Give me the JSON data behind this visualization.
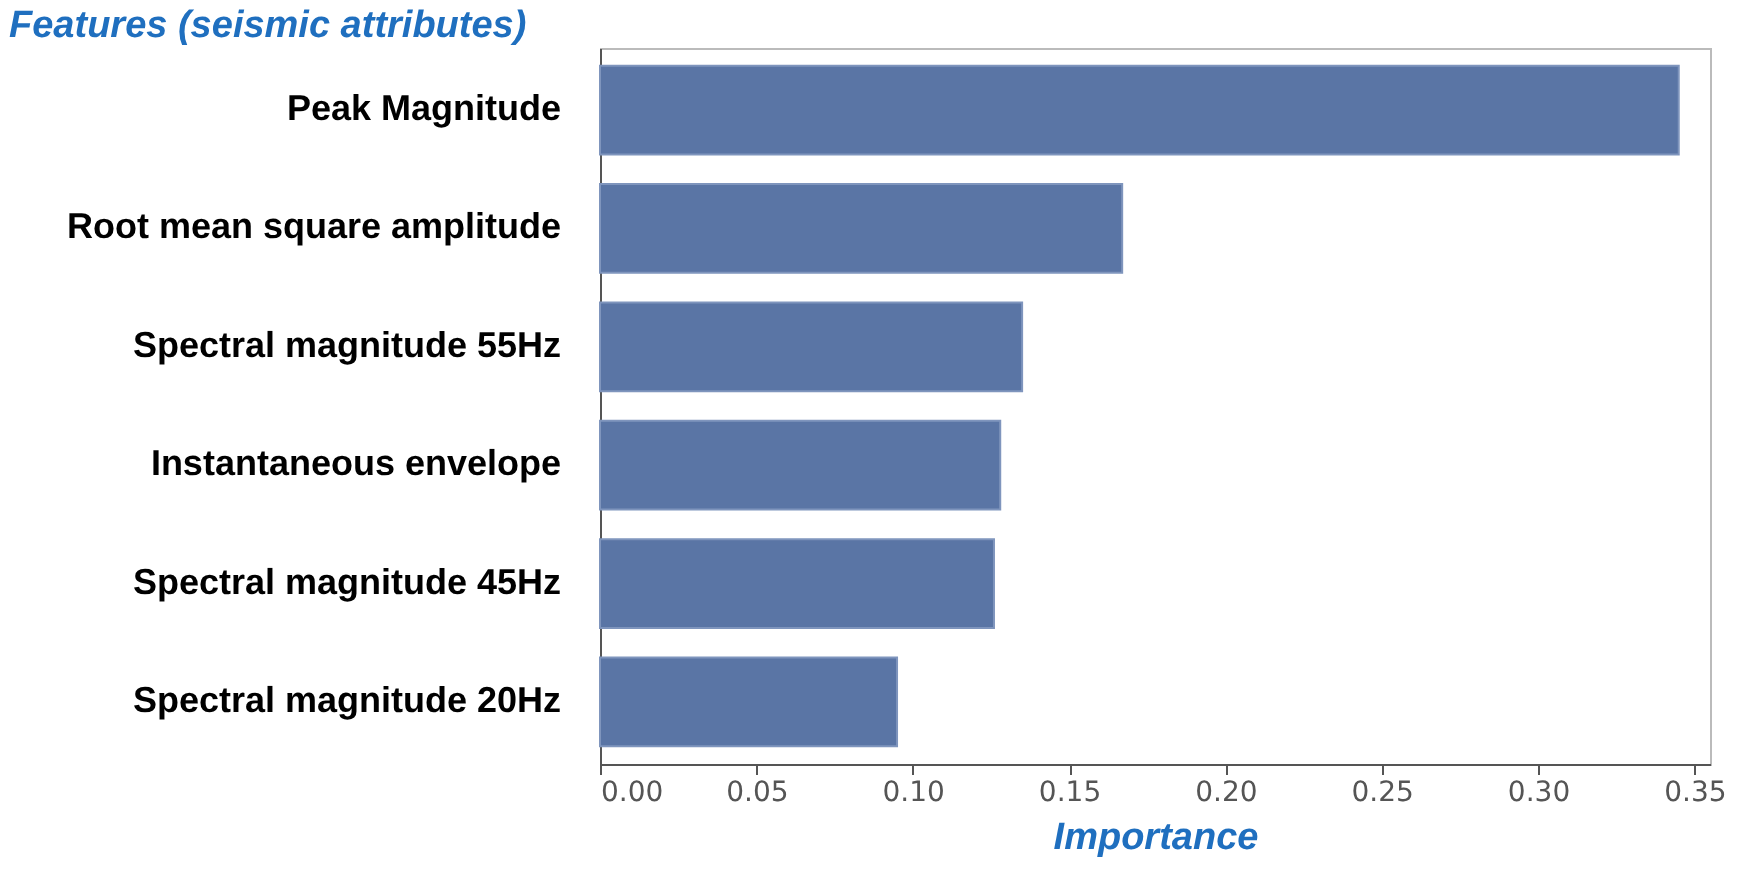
{
  "chart_data": {
    "type": "bar",
    "orientation": "horizontal",
    "ylabel": "Features (seismic attributes)",
    "xlabel": "Importance",
    "categories": [
      "Peak Magnitude",
      "Root mean square amplitude",
      "Spectral magnitude 55Hz",
      "Instantaneous envelope",
      "Spectral magnitude 45Hz",
      "Spectral magnitude 20Hz"
    ],
    "values": [
      0.345,
      0.167,
      0.135,
      0.128,
      0.126,
      0.095
    ],
    "color": "#5a75a5",
    "xlim": [
      0,
      0.355
    ],
    "xticks": [
      {
        "value": 0,
        "label": "0.00"
      },
      {
        "value": 0.05,
        "label": "0.05"
      },
      {
        "value": 0.1,
        "label": "0.10"
      },
      {
        "value": 0.15,
        "label": "0.15"
      },
      {
        "value": 0.2,
        "label": "0.20"
      },
      {
        "value": 0.25,
        "label": "0.25"
      },
      {
        "value": 0.3,
        "label": "0.30"
      },
      {
        "value": 0.35,
        "label": "0.35"
      }
    ],
    "grid": false
  }
}
